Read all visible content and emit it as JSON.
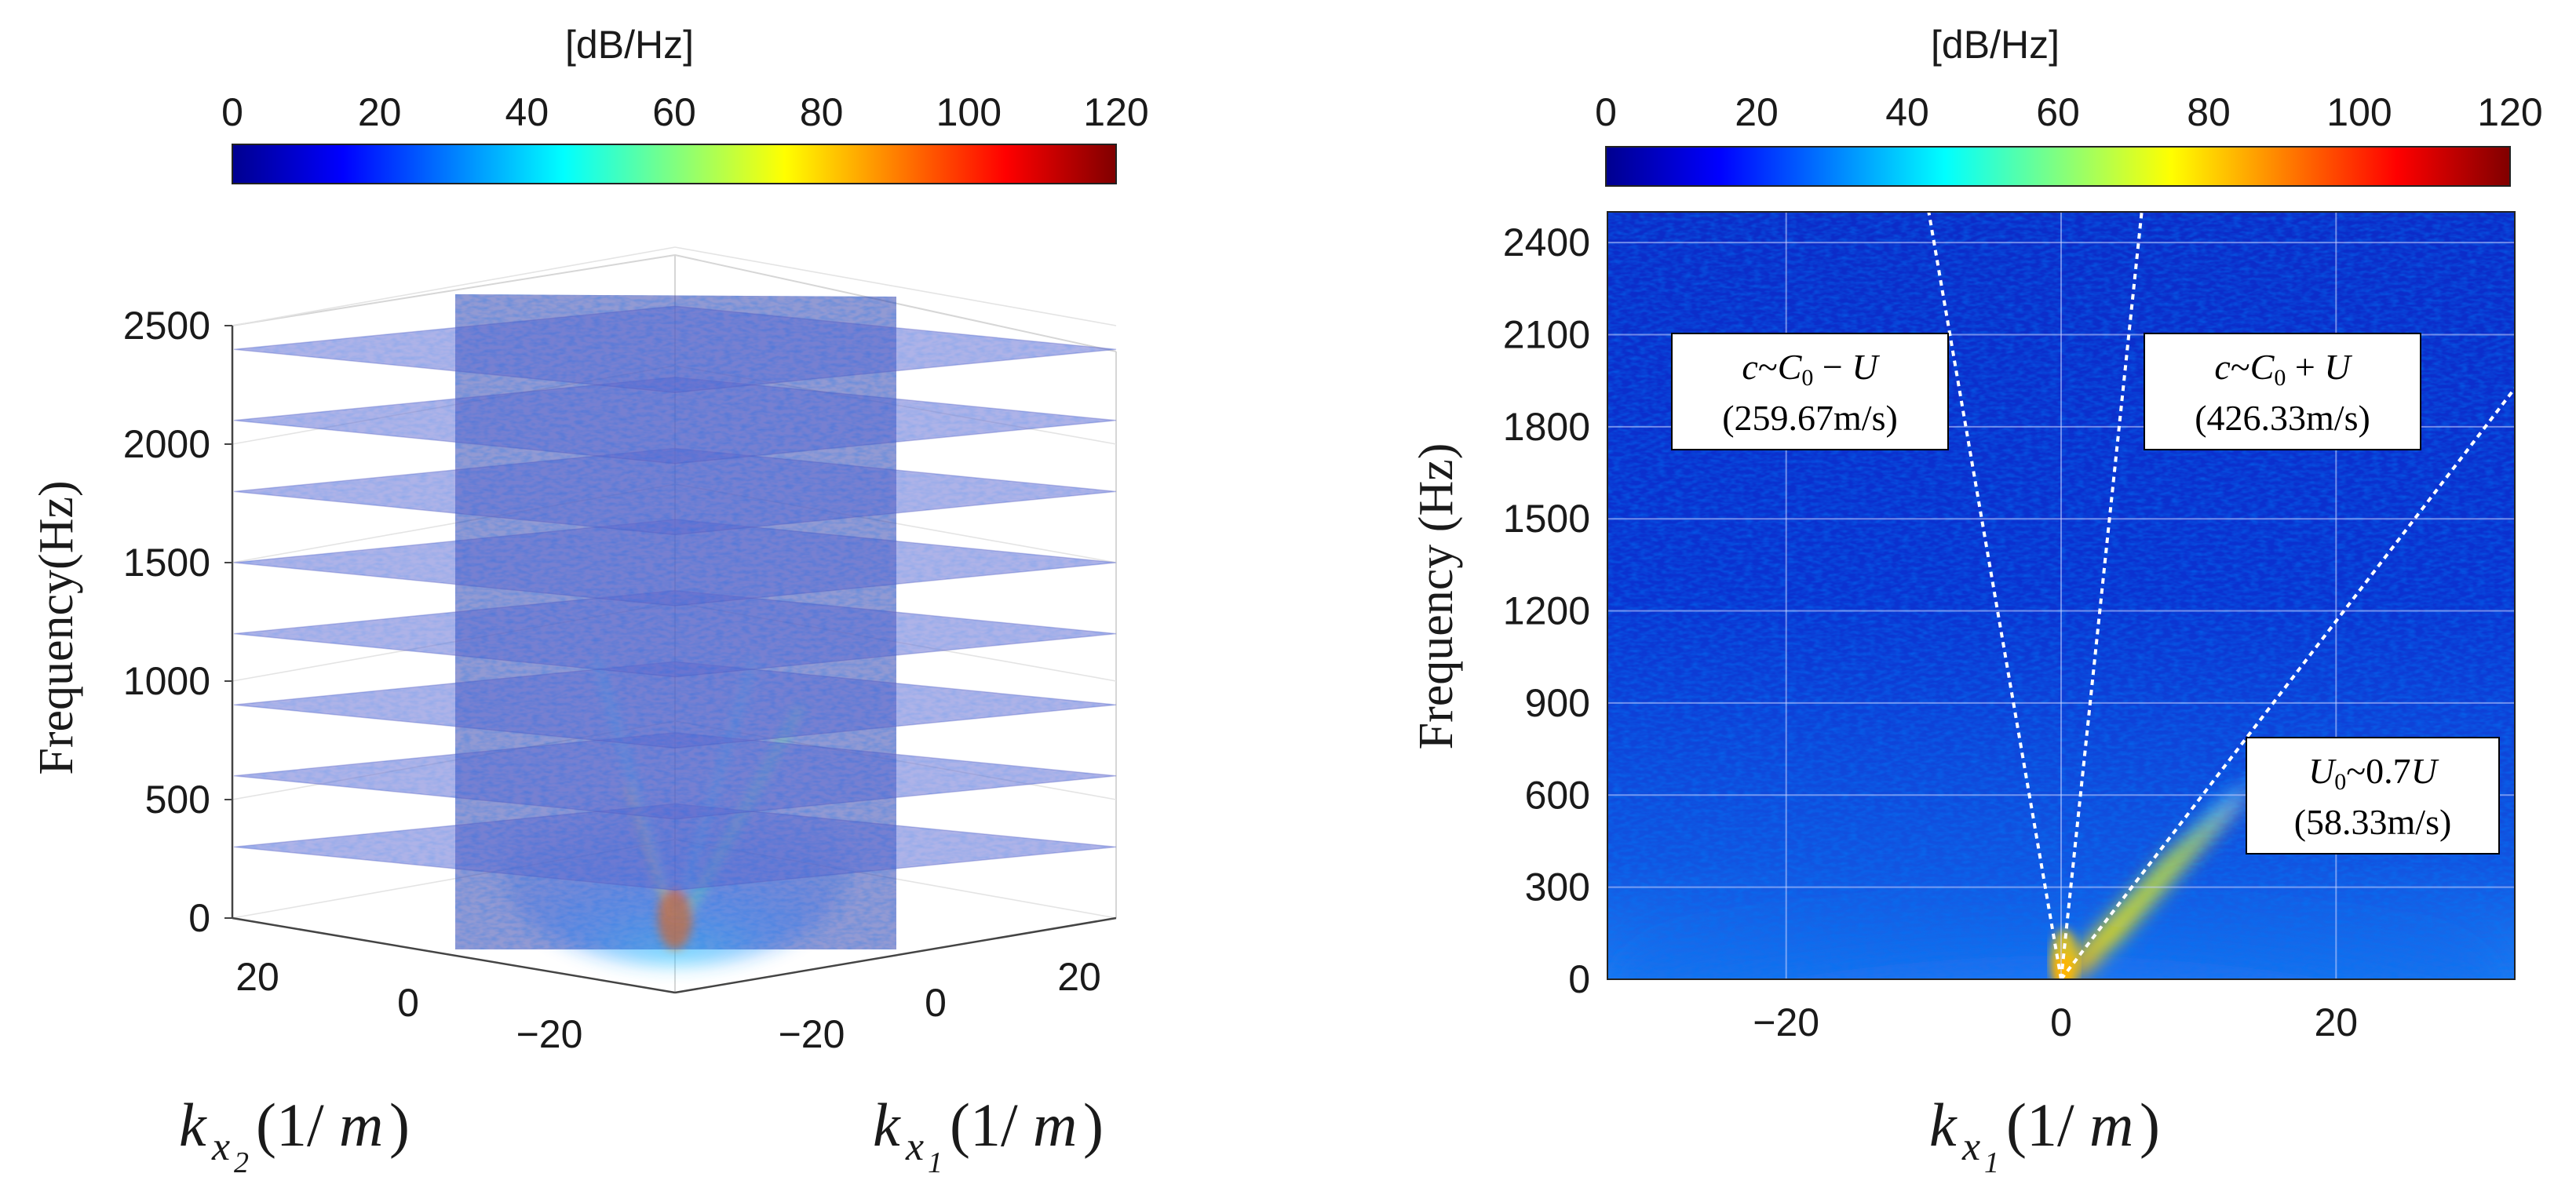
{
  "chart_data": [
    {
      "type": "heatmap",
      "title": "",
      "colorbar": {
        "unit": "[dB/Hz]",
        "ticks": [
          "0",
          "20",
          "40",
          "60",
          "80",
          "100",
          "120"
        ],
        "range": [
          0,
          120
        ]
      },
      "ylabel": "Frequency(Hz)",
      "zticks": [
        "0",
        "500",
        "1000",
        "1500",
        "2000",
        "2500"
      ],
      "x2ticks": [
        "20",
        "0",
        "-20"
      ],
      "x1ticks": [
        "-20",
        "0",
        "20"
      ],
      "xlabel_left": "k_{x2}(1/m)",
      "xlabel_right": "k_{x1}(1/m)",
      "slice_frequencies_hz": [
        300,
        600,
        900,
        1200,
        1500,
        1800,
        2100,
        2400
      ],
      "projection": "3d"
    },
    {
      "type": "heatmap",
      "colorbar": {
        "unit": "[dB/Hz]",
        "ticks": [
          "0",
          "20",
          "40",
          "60",
          "80",
          "100",
          "120"
        ],
        "range": [
          0,
          120
        ]
      },
      "ylabel": "Frequency (Hz)",
      "xlabel": "k_{x1}(1/m)",
      "xlim": [
        -33,
        33
      ],
      "ylim": [
        0,
        2500
      ],
      "xticks": [
        "-20",
        "0",
        "20"
      ],
      "yticks": [
        "0",
        "300",
        "600",
        "900",
        "1200",
        "1500",
        "1800",
        "2100",
        "2400"
      ],
      "grid": true,
      "lines": [
        {
          "name": "c~C0-U",
          "slope_hz_per_inv_m": -259.67,
          "label": "c~C_0 − U",
          "value": "(259.67m/s)"
        },
        {
          "name": "c~C0+U",
          "slope_hz_per_inv_m": 426.33,
          "label": "c~C_0 + U",
          "value": "(426.33m/s)"
        },
        {
          "name": "U0~0.7U",
          "slope_hz_per_inv_m": 58.33,
          "label": "U_0~0.7U",
          "value": "(58.33m/s)"
        }
      ]
    }
  ]
}
